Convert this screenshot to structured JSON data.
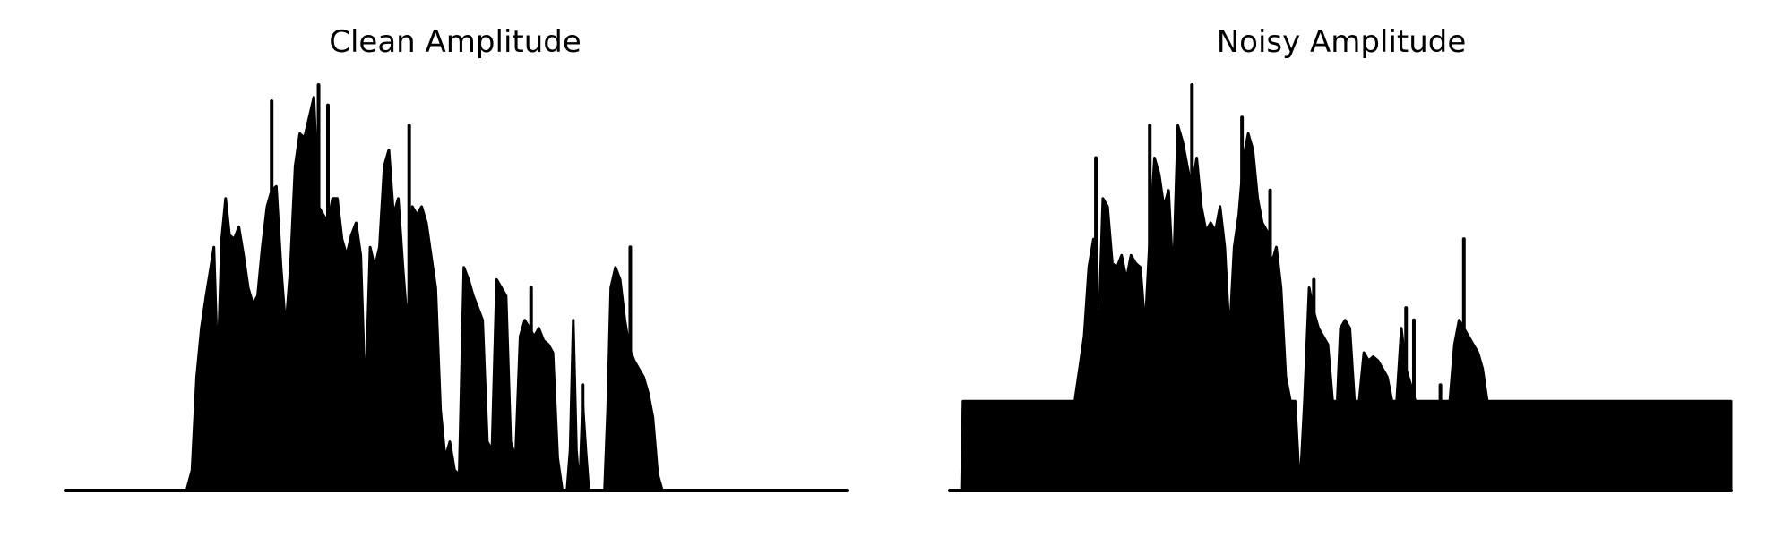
{
  "chart_data": [
    {
      "type": "area",
      "title": "Clean Amplitude",
      "color": "#000000",
      "axes_visible": false,
      "grid": false,
      "x_range": [
        0,
        1
      ],
      "y_range": [
        0,
        1
      ],
      "envelope": [
        [
          0.0,
          0.0
        ],
        [
          0.155,
          0.0
        ],
        [
          0.162,
          0.05
        ],
        [
          0.168,
          0.28
        ],
        [
          0.174,
          0.4
        ],
        [
          0.18,
          0.48
        ],
        [
          0.186,
          0.55
        ],
        [
          0.19,
          0.6
        ],
        [
          0.195,
          0.3
        ],
        [
          0.2,
          0.62
        ],
        [
          0.205,
          0.72
        ],
        [
          0.21,
          0.63
        ],
        [
          0.216,
          0.62
        ],
        [
          0.222,
          0.65
        ],
        [
          0.228,
          0.58
        ],
        [
          0.234,
          0.5
        ],
        [
          0.24,
          0.46
        ],
        [
          0.246,
          0.48
        ],
        [
          0.252,
          0.6
        ],
        [
          0.258,
          0.7
        ],
        [
          0.264,
          0.74
        ],
        [
          0.27,
          0.75
        ],
        [
          0.276,
          0.55
        ],
        [
          0.282,
          0.4
        ],
        [
          0.288,
          0.55
        ],
        [
          0.294,
          0.8
        ],
        [
          0.3,
          0.88
        ],
        [
          0.306,
          0.87
        ],
        [
          0.312,
          0.92
        ],
        [
          0.318,
          0.97
        ],
        [
          0.324,
          0.7
        ],
        [
          0.33,
          0.68
        ],
        [
          0.336,
          0.66
        ],
        [
          0.342,
          0.72
        ],
        [
          0.348,
          0.72
        ],
        [
          0.354,
          0.62
        ],
        [
          0.36,
          0.58
        ],
        [
          0.366,
          0.63
        ],
        [
          0.372,
          0.66
        ],
        [
          0.378,
          0.58
        ],
        [
          0.384,
          0.22
        ],
        [
          0.39,
          0.6
        ],
        [
          0.396,
          0.55
        ],
        [
          0.402,
          0.6
        ],
        [
          0.408,
          0.8
        ],
        [
          0.414,
          0.84
        ],
        [
          0.42,
          0.68
        ],
        [
          0.426,
          0.72
        ],
        [
          0.432,
          0.55
        ],
        [
          0.438,
          0.4
        ],
        [
          0.444,
          0.7
        ],
        [
          0.45,
          0.68
        ],
        [
          0.456,
          0.7
        ],
        [
          0.462,
          0.66
        ],
        [
          0.468,
          0.58
        ],
        [
          0.474,
          0.5
        ],
        [
          0.48,
          0.2
        ],
        [
          0.486,
          0.08
        ],
        [
          0.492,
          0.12
        ],
        [
          0.498,
          0.05
        ],
        [
          0.504,
          0.04
        ],
        [
          0.51,
          0.55
        ],
        [
          0.516,
          0.52
        ],
        [
          0.522,
          0.48
        ],
        [
          0.528,
          0.45
        ],
        [
          0.534,
          0.42
        ],
        [
          0.54,
          0.12
        ],
        [
          0.546,
          0.1
        ],
        [
          0.552,
          0.52
        ],
        [
          0.558,
          0.5
        ],
        [
          0.564,
          0.48
        ],
        [
          0.57,
          0.12
        ],
        [
          0.576,
          0.08
        ],
        [
          0.582,
          0.38
        ],
        [
          0.588,
          0.42
        ],
        [
          0.594,
          0.4
        ],
        [
          0.6,
          0.38
        ],
        [
          0.606,
          0.4
        ],
        [
          0.612,
          0.37
        ],
        [
          0.618,
          0.36
        ],
        [
          0.624,
          0.34
        ],
        [
          0.63,
          0.08
        ],
        [
          0.636,
          0.0
        ],
        [
          0.642,
          0.0
        ],
        [
          0.646,
          0.1
        ],
        [
          0.65,
          0.42
        ],
        [
          0.654,
          0.1
        ],
        [
          0.658,
          0.0
        ],
        [
          0.662,
          0.22
        ],
        [
          0.666,
          0.1
        ],
        [
          0.67,
          0.0
        ],
        [
          0.69,
          0.0
        ],
        [
          0.694,
          0.2
        ],
        [
          0.698,
          0.5
        ],
        [
          0.704,
          0.55
        ],
        [
          0.71,
          0.52
        ],
        [
          0.716,
          0.42
        ],
        [
          0.722,
          0.35
        ],
        [
          0.728,
          0.32
        ],
        [
          0.734,
          0.3
        ],
        [
          0.74,
          0.28
        ],
        [
          0.746,
          0.24
        ],
        [
          0.752,
          0.18
        ],
        [
          0.758,
          0.04
        ],
        [
          0.764,
          0.0
        ],
        [
          1.0,
          0.0
        ]
      ],
      "spikes": [
        {
          "x": 0.264,
          "y": 0.96
        },
        {
          "x": 0.324,
          "y": 1.0
        },
        {
          "x": 0.336,
          "y": 0.95
        },
        {
          "x": 0.44,
          "y": 0.9
        },
        {
          "x": 0.596,
          "y": 0.5
        },
        {
          "x": 0.662,
          "y": 0.26
        },
        {
          "x": 0.723,
          "y": 0.6
        }
      ]
    },
    {
      "type": "area",
      "title": "Noisy Amplitude",
      "color": "#000000",
      "axes_visible": false,
      "grid": false,
      "x_range": [
        0,
        1
      ],
      "y_range": [
        0,
        1
      ],
      "noise_floor": 0.22,
      "envelope": [
        [
          0.0,
          0.0
        ],
        [
          0.015,
          0.0
        ],
        [
          0.017,
          0.22
        ],
        [
          0.16,
          0.22
        ],
        [
          0.166,
          0.3
        ],
        [
          0.172,
          0.38
        ],
        [
          0.178,
          0.55
        ],
        [
          0.184,
          0.62
        ],
        [
          0.19,
          0.36
        ],
        [
          0.196,
          0.72
        ],
        [
          0.202,
          0.7
        ],
        [
          0.208,
          0.56
        ],
        [
          0.214,
          0.55
        ],
        [
          0.22,
          0.58
        ],
        [
          0.226,
          0.52
        ],
        [
          0.232,
          0.58
        ],
        [
          0.238,
          0.56
        ],
        [
          0.244,
          0.55
        ],
        [
          0.25,
          0.4
        ],
        [
          0.256,
          0.62
        ],
        [
          0.262,
          0.82
        ],
        [
          0.268,
          0.78
        ],
        [
          0.274,
          0.7
        ],
        [
          0.28,
          0.74
        ],
        [
          0.286,
          0.52
        ],
        [
          0.292,
          0.9
        ],
        [
          0.298,
          0.86
        ],
        [
          0.304,
          0.8
        ],
        [
          0.31,
          0.74
        ],
        [
          0.316,
          0.82
        ],
        [
          0.322,
          0.7
        ],
        [
          0.328,
          0.64
        ],
        [
          0.334,
          0.66
        ],
        [
          0.34,
          0.64
        ],
        [
          0.346,
          0.7
        ],
        [
          0.352,
          0.6
        ],
        [
          0.358,
          0.38
        ],
        [
          0.364,
          0.6
        ],
        [
          0.37,
          0.68
        ],
        [
          0.376,
          0.82
        ],
        [
          0.382,
          0.88
        ],
        [
          0.388,
          0.84
        ],
        [
          0.394,
          0.72
        ],
        [
          0.4,
          0.66
        ],
        [
          0.406,
          0.64
        ],
        [
          0.412,
          0.56
        ],
        [
          0.418,
          0.6
        ],
        [
          0.424,
          0.5
        ],
        [
          0.43,
          0.28
        ],
        [
          0.436,
          0.22
        ],
        [
          0.442,
          0.22
        ],
        [
          0.448,
          0.0
        ],
        [
          0.454,
          0.22
        ],
        [
          0.46,
          0.5
        ],
        [
          0.466,
          0.44
        ],
        [
          0.472,
          0.4
        ],
        [
          0.478,
          0.38
        ],
        [
          0.484,
          0.36
        ],
        [
          0.49,
          0.22
        ],
        [
          0.496,
          0.22
        ],
        [
          0.5,
          0.4
        ],
        [
          0.506,
          0.42
        ],
        [
          0.512,
          0.4
        ],
        [
          0.518,
          0.22
        ],
        [
          0.524,
          0.22
        ],
        [
          0.53,
          0.34
        ],
        [
          0.536,
          0.32
        ],
        [
          0.542,
          0.33
        ],
        [
          0.548,
          0.32
        ],
        [
          0.554,
          0.3
        ],
        [
          0.56,
          0.28
        ],
        [
          0.566,
          0.22
        ],
        [
          0.572,
          0.22
        ],
        [
          0.578,
          0.4
        ],
        [
          0.584,
          0.3
        ],
        [
          0.59,
          0.26
        ],
        [
          0.596,
          0.22
        ],
        [
          0.64,
          0.22
        ],
        [
          0.646,
          0.36
        ],
        [
          0.652,
          0.42
        ],
        [
          0.658,
          0.4
        ],
        [
          0.664,
          0.38
        ],
        [
          0.67,
          0.36
        ],
        [
          0.676,
          0.34
        ],
        [
          0.682,
          0.3
        ],
        [
          0.688,
          0.22
        ],
        [
          1.0,
          0.22
        ],
        [
          1.0,
          0.0
        ]
      ],
      "spikes": [
        {
          "x": 0.187,
          "y": 0.82
        },
        {
          "x": 0.256,
          "y": 0.9
        },
        {
          "x": 0.31,
          "y": 1.0
        },
        {
          "x": 0.374,
          "y": 0.92
        },
        {
          "x": 0.41,
          "y": 0.74
        },
        {
          "x": 0.466,
          "y": 0.52
        },
        {
          "x": 0.584,
          "y": 0.45
        },
        {
          "x": 0.594,
          "y": 0.42
        },
        {
          "x": 0.628,
          "y": 0.26
        },
        {
          "x": 0.658,
          "y": 0.62
        }
      ]
    }
  ]
}
